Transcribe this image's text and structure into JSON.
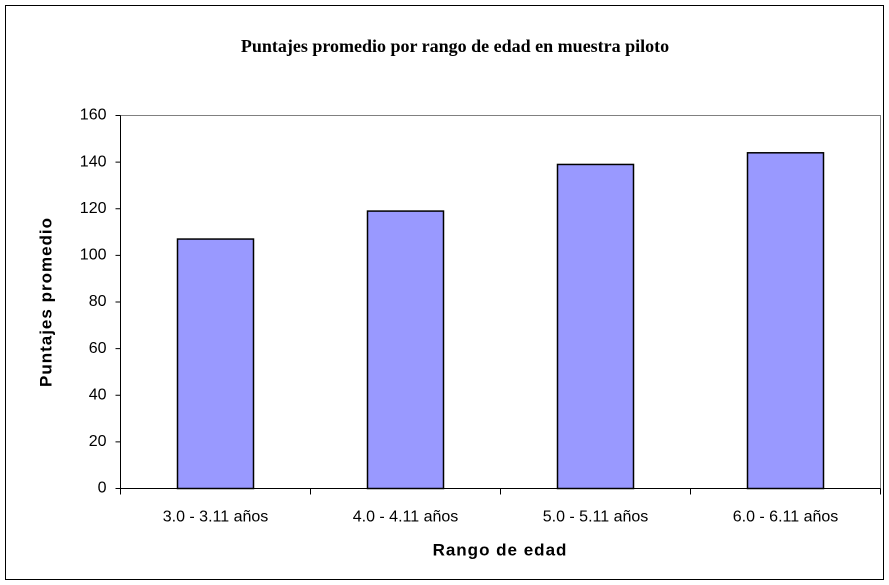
{
  "chart_data": {
    "type": "bar",
    "title": "Puntajes promedio por rango de edad en muestra piloto",
    "x_label": "Rango de edad",
    "y_label": "Puntajes promedio",
    "categories": [
      "3.0 - 3.11 años",
      "4.0 - 4.11 años",
      "5.0 - 5.11 años",
      "6.0 - 6.11 años"
    ],
    "values": [
      107,
      119,
      139,
      144
    ],
    "color": "#9999ff",
    "ylim": [
      0,
      160
    ],
    "yticks": [
      0,
      20,
      40,
      60,
      80,
      100,
      120,
      140,
      160
    ],
    "grid": false
  }
}
